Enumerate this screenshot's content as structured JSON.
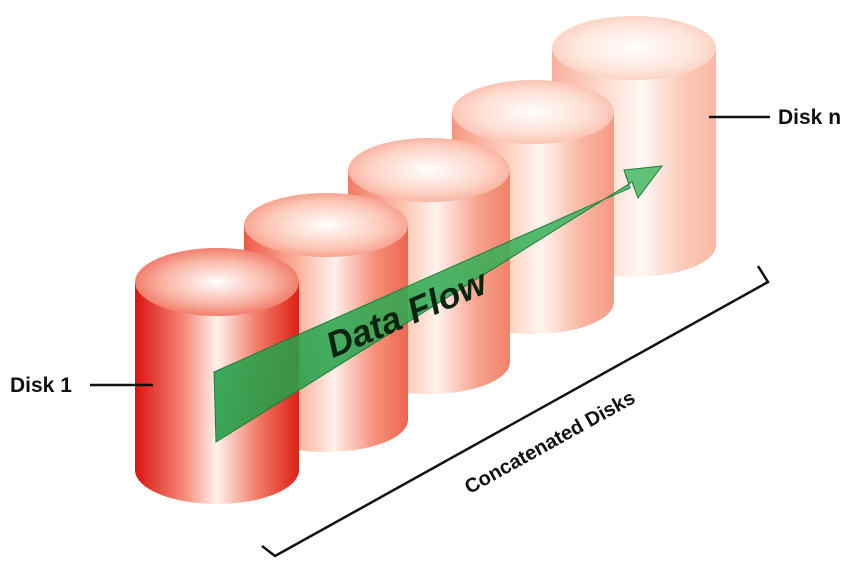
{
  "labels": {
    "disk_first": "Disk 1",
    "disk_last": "Disk n",
    "flow": "Data Flow",
    "group": "Concatenated Disks"
  },
  "colors": {
    "disk_front": "#e0201c",
    "disk_back": "#f9c8b2",
    "arrow": "#2aa34a",
    "leader": "#111111",
    "background": "#ffffff"
  },
  "disks": {
    "count": 5
  }
}
